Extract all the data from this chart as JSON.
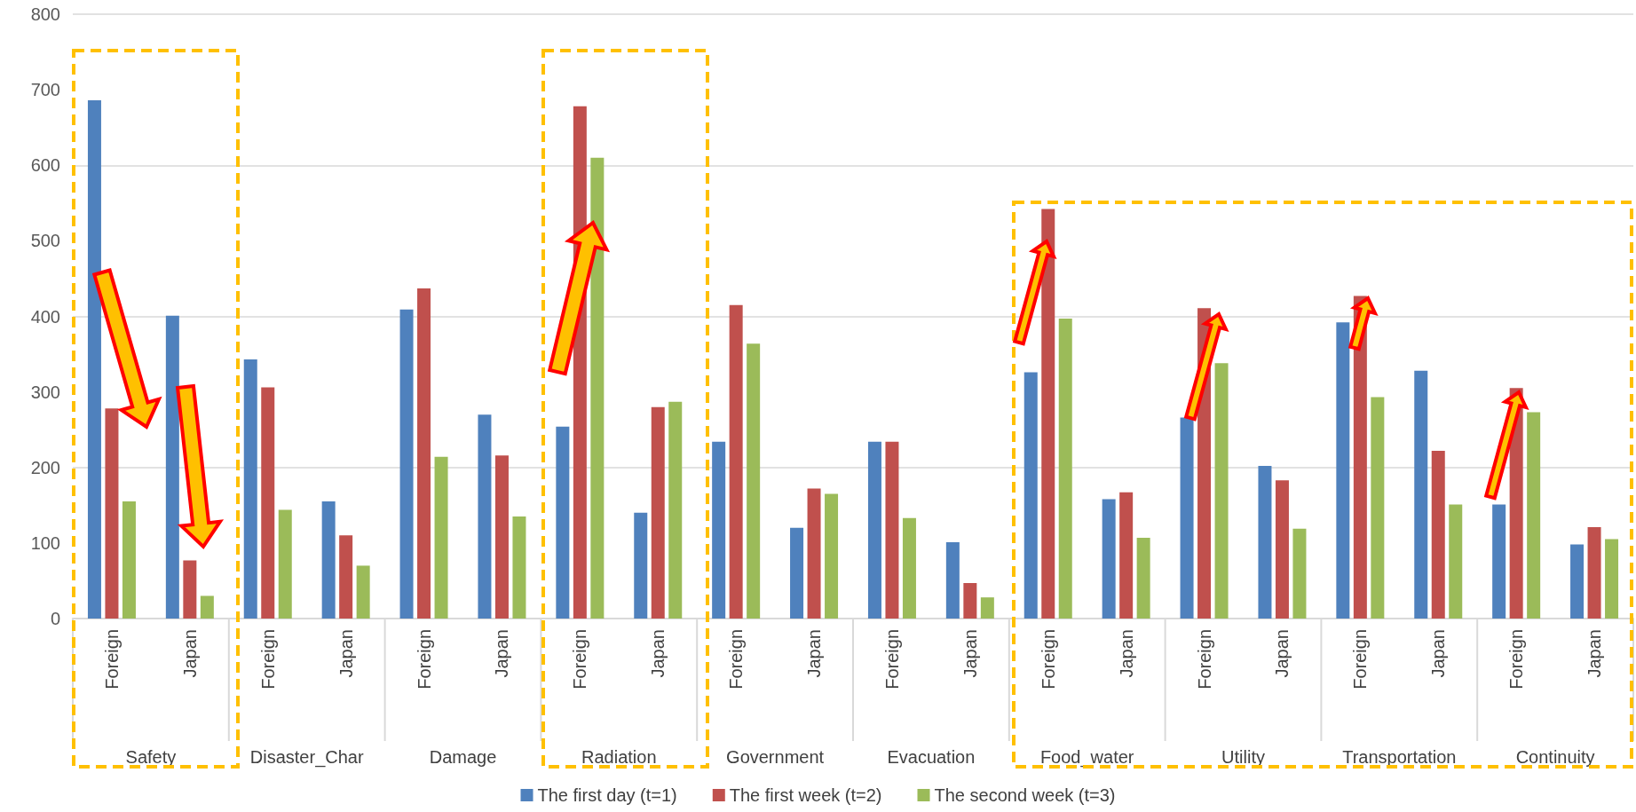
{
  "chart_data": {
    "type": "bar",
    "categories": [
      "Foreign",
      "Japan",
      "Foreign",
      "Japan",
      "Foreign",
      "Japan",
      "Foreign",
      "Japan",
      "Foreign",
      "Japan",
      "Foreign",
      "Japan",
      "Foreign",
      "Japan",
      "Foreign",
      "Japan",
      "Foreign",
      "Japan",
      "Foreign",
      "Japan"
    ],
    "annotations": [
      "Safety",
      "Disaster_Char",
      "Damage",
      "Radiation",
      "Government",
      "Evacuation",
      "Food_water",
      "Utility",
      "Transportation",
      "Continuity"
    ],
    "series": [
      {
        "name": "The first day (t=1)",
        "color": "#4f81bd",
        "values": [
          686,
          401,
          343,
          155,
          409,
          270,
          254,
          140,
          234,
          120,
          234,
          101,
          326,
          158,
          266,
          202,
          392,
          328,
          151,
          98
        ]
      },
      {
        "name": "The first week (t=2)",
        "color": "#c0504d",
        "values": [
          278,
          77,
          306,
          110,
          437,
          216,
          678,
          280,
          415,
          172,
          234,
          47,
          542,
          167,
          411,
          183,
          427,
          222,
          305,
          121
        ]
      },
      {
        "name": "The second week (t=3)",
        "color": "#9bbb59",
        "values": [
          155,
          30,
          144,
          70,
          214,
          135,
          610,
          287,
          364,
          165,
          133,
          28,
          397,
          107,
          338,
          119,
          293,
          151,
          273,
          105
        ]
      }
    ],
    "ylim": [
      0,
      800
    ],
    "yticks": [
      0,
      100,
      200,
      300,
      400,
      500,
      600,
      700,
      800
    ],
    "grid": "y",
    "legend": "bottom"
  }
}
